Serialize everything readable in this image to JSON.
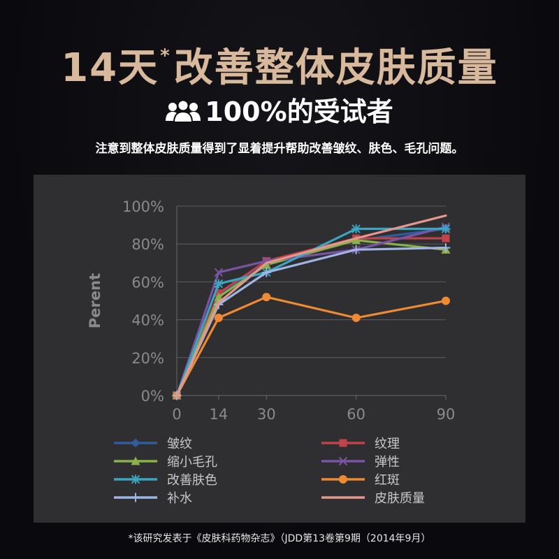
{
  "header": {
    "prefix": "14天",
    "star": "*",
    "suffix": "改善整体皮肤质量",
    "accent_color": "#d8b99c"
  },
  "subheadline": {
    "icon": "people-group-icon",
    "text": "100%的受试者"
  },
  "description": "注意到整体皮肤质量得到了显着提升帮助改善皱纹、肤色、毛孔问题。",
  "footnote": "*该研究发表于《皮肤科药物杂志》（JDD第13卷第9期（2014年9月）",
  "chart_data": {
    "type": "line",
    "title": "",
    "xlabel": "",
    "ylabel": "Perent",
    "x": [
      0,
      14,
      30,
      60,
      90
    ],
    "x_tick_labels": [
      "0",
      "14",
      "30",
      "60",
      "90"
    ],
    "ylim": [
      0,
      100
    ],
    "y_ticks": [
      0,
      20,
      40,
      60,
      80,
      100
    ],
    "y_tick_labels": [
      "0%",
      "20%",
      "40%",
      "60%",
      "80%",
      "100%"
    ],
    "grid": true,
    "legend_position": "bottom",
    "series": [
      {
        "name": "皱纹",
        "color": "#2e5c9c",
        "marker": "diamond",
        "values": [
          0,
          53,
          70,
          82,
          88
        ]
      },
      {
        "name": "纹理",
        "color": "#c0434a",
        "marker": "square",
        "values": [
          0,
          54,
          71,
          83,
          83
        ]
      },
      {
        "name": "缩小毛孔",
        "color": "#8cb04a",
        "marker": "triangle",
        "values": [
          0,
          52,
          69,
          82,
          77
        ]
      },
      {
        "name": "弹性",
        "color": "#7a54a4",
        "marker": "x",
        "values": [
          0,
          65,
          71,
          77,
          89
        ]
      },
      {
        "name": "改善肤色",
        "color": "#3aa6c2",
        "marker": "star",
        "values": [
          0,
          59,
          65,
          88,
          88
        ]
      },
      {
        "name": "红斑",
        "color": "#ee8a34",
        "marker": "circle",
        "values": [
          0,
          41,
          52,
          41,
          50
        ]
      },
      {
        "name": "补水",
        "color": "#9fb6e4",
        "marker": "plus",
        "values": [
          0,
          48,
          65,
          77,
          78
        ]
      },
      {
        "name": "皮肤质量",
        "color": "#e3988e",
        "marker": "none",
        "values": [
          0,
          49,
          70,
          83,
          95
        ]
      }
    ]
  }
}
